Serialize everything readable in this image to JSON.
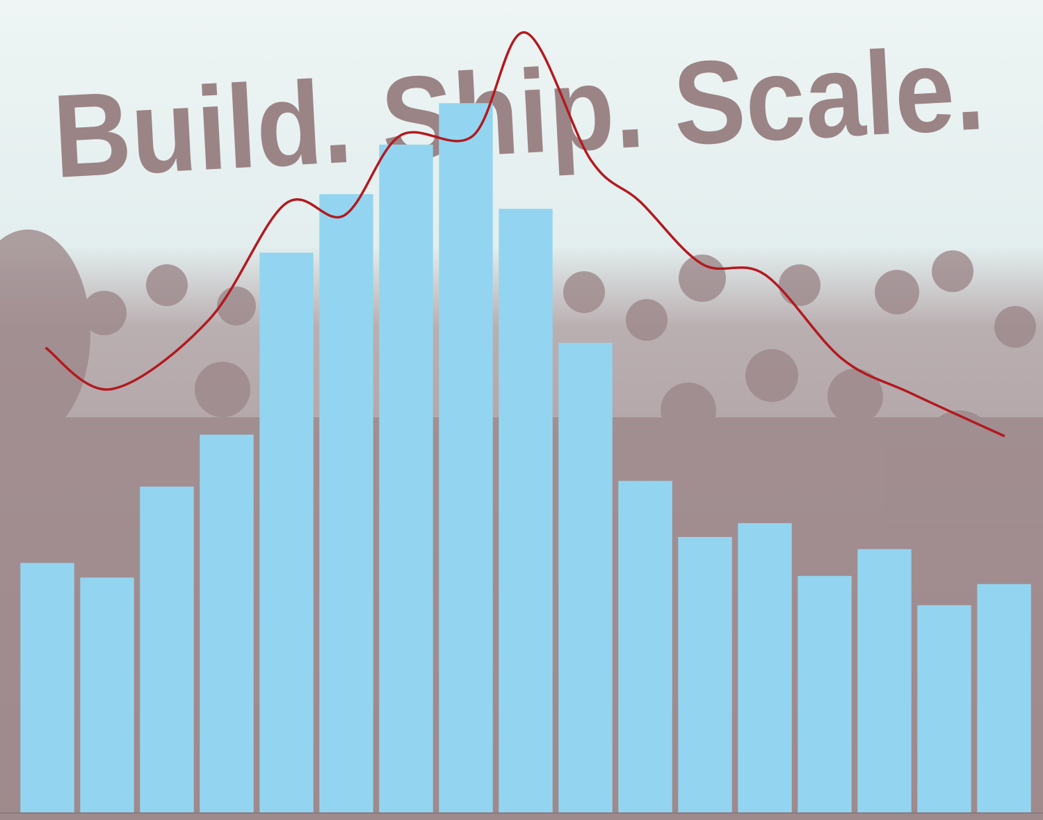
{
  "headline": "Build. Ship. Scale.",
  "chart_data": {
    "type": "bar",
    "x": [
      1,
      2,
      3,
      4,
      5,
      6,
      7,
      8,
      9,
      10,
      11,
      12,
      13,
      14,
      15,
      16,
      17
    ],
    "xlim": [
      0.5,
      17.5
    ],
    "ylim": [
      0,
      100
    ],
    "series": [
      {
        "type": "bar",
        "color": "#93d5f0",
        "values": [
          30.7,
          28.9,
          40.1,
          46.5,
          68.9,
          76.1,
          82.2,
          87.3,
          74.3,
          57.8,
          40.8,
          33.9,
          35.6,
          29.1,
          32.4,
          25.5,
          28.1
        ]
      },
      {
        "type": "line",
        "color": "#b3191f",
        "x": [
          0.97,
          2.07,
          3.7,
          4.98,
          5.97,
          6.9,
          8.12,
          8.99,
          10.09,
          10.91,
          11.95,
          13.0,
          14.28,
          15.44,
          17.01
        ],
        "values": [
          57.2,
          52.1,
          60.6,
          74.9,
          73.5,
          83.3,
          83.3,
          96.0,
          80.3,
          75.2,
          67.5,
          66.2,
          55.9,
          51.6,
          46.3
        ]
      }
    ]
  }
}
